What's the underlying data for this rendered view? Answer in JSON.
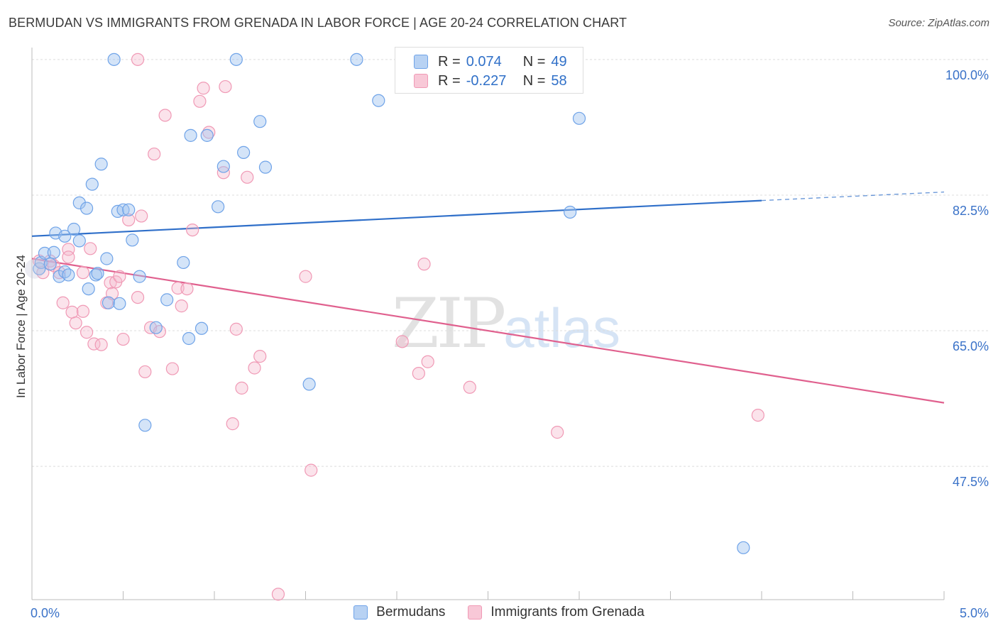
{
  "title": "BERMUDAN VS IMMIGRANTS FROM GRENADA IN LABOR FORCE | AGE 20-24 CORRELATION CHART",
  "source": "Source: ZipAtlas.com",
  "watermark": {
    "zip": "ZIP",
    "atlas": "atlas"
  },
  "legend": {
    "r_label": "R =",
    "n_label": "N =",
    "rows": [
      {
        "name": "Bermudans",
        "r": "0.074",
        "n": "49"
      },
      {
        "name": "Immigrants from Grenada",
        "r": "-0.227",
        "n": "58"
      }
    ]
  },
  "chart_data": {
    "type": "scatter",
    "title": "BERMUDAN VS IMMIGRANTS FROM GRENADA IN LABOR FORCE | AGE 20-24 CORRELATION CHART",
    "xlabel": "",
    "ylabel": "In Labor Force | Age 20-24",
    "xlim": [
      0.0,
      5.0
    ],
    "ylim": [
      30.3,
      102.0
    ],
    "x_tick_labels": [
      "0.0%",
      "5.0%"
    ],
    "y_ticks": [
      47.5,
      65.0,
      82.5,
      100.0
    ],
    "y_tick_labels": [
      "47.5%",
      "65.0%",
      "82.5%",
      "100.0%"
    ],
    "colors": {
      "bermudans": "#6fa3e8",
      "grenada": "#f099b5",
      "bermudans_line": "#2f6fc9",
      "grenada_line": "#e0608e",
      "tick_text": "#3a72c8"
    },
    "series": [
      {
        "name": "Bermudans",
        "trend": {
          "x0": 0.0,
          "y0": 77.2,
          "x1": 4.0,
          "y1": 81.8,
          "dashed_to": 5.0,
          "y_dashed_end": 82.9
        },
        "points": [
          [
            0.04,
            73.0
          ],
          [
            0.05,
            73.8
          ],
          [
            0.07,
            75.0
          ],
          [
            0.1,
            73.6
          ],
          [
            0.12,
            75.1
          ],
          [
            0.13,
            77.6
          ],
          [
            0.15,
            72.0
          ],
          [
            0.18,
            77.2
          ],
          [
            0.18,
            72.6
          ],
          [
            0.2,
            72.2
          ],
          [
            0.23,
            78.1
          ],
          [
            0.26,
            76.6
          ],
          [
            0.26,
            81.5
          ],
          [
            0.3,
            80.8
          ],
          [
            0.31,
            70.4
          ],
          [
            0.33,
            83.9
          ],
          [
            0.35,
            72.2
          ],
          [
            0.36,
            72.4
          ],
          [
            0.38,
            86.5
          ],
          [
            0.41,
            74.3
          ],
          [
            0.42,
            68.6
          ],
          [
            0.45,
            100.0
          ],
          [
            0.47,
            80.4
          ],
          [
            0.48,
            68.5
          ],
          [
            0.5,
            80.6
          ],
          [
            0.53,
            80.6
          ],
          [
            0.55,
            76.7
          ],
          [
            0.59,
            72.0
          ],
          [
            0.62,
            52.8
          ],
          [
            0.68,
            65.4
          ],
          [
            0.74,
            69.0
          ],
          [
            0.83,
            73.8
          ],
          [
            0.86,
            64.0
          ],
          [
            0.87,
            90.2
          ],
          [
            0.93,
            65.3
          ],
          [
            0.96,
            90.2
          ],
          [
            1.02,
            81.0
          ],
          [
            1.05,
            86.2
          ],
          [
            1.12,
            100.0
          ],
          [
            1.16,
            88.0
          ],
          [
            1.25,
            92.0
          ],
          [
            1.28,
            86.1
          ],
          [
            1.52,
            58.1
          ],
          [
            1.78,
            100.0
          ],
          [
            1.9,
            94.7
          ],
          [
            2.53,
            100.0
          ],
          [
            2.95,
            80.3
          ],
          [
            3.0,
            92.4
          ],
          [
            3.9,
            37.0
          ]
        ]
      },
      {
        "name": "Immigrants from Grenada",
        "trend": {
          "x0": 0.0,
          "y0": 74.3,
          "x1": 5.0,
          "y1": 55.7
        },
        "points": [
          [
            0.04,
            74.0
          ],
          [
            0.06,
            72.5
          ],
          [
            0.1,
            74.0
          ],
          [
            0.12,
            73.4
          ],
          [
            0.15,
            72.5
          ],
          [
            0.2,
            75.5
          ],
          [
            0.2,
            74.5
          ],
          [
            0.22,
            67.4
          ],
          [
            0.24,
            66.0
          ],
          [
            0.28,
            67.5
          ],
          [
            0.3,
            64.8
          ],
          [
            0.32,
            75.6
          ],
          [
            0.34,
            63.3
          ],
          [
            0.38,
            63.2
          ],
          [
            0.41,
            68.6
          ],
          [
            0.43,
            71.2
          ],
          [
            0.44,
            69.8
          ],
          [
            0.46,
            71.3
          ],
          [
            0.48,
            72.0
          ],
          [
            0.5,
            63.9
          ],
          [
            0.53,
            79.3
          ],
          [
            0.58,
            69.3
          ],
          [
            0.6,
            79.8
          ],
          [
            0.62,
            59.7
          ],
          [
            0.65,
            65.4
          ],
          [
            0.67,
            87.8
          ],
          [
            0.7,
            64.9
          ],
          [
            0.73,
            92.8
          ],
          [
            0.77,
            60.1
          ],
          [
            0.8,
            70.5
          ],
          [
            0.82,
            68.2
          ],
          [
            0.85,
            70.4
          ],
          [
            0.88,
            78.0
          ],
          [
            0.92,
            94.6
          ],
          [
            0.94,
            96.3
          ],
          [
            0.97,
            90.6
          ],
          [
            1.05,
            85.4
          ],
          [
            1.06,
            96.5
          ],
          [
            1.1,
            53.0
          ],
          [
            1.12,
            65.2
          ],
          [
            1.15,
            57.6
          ],
          [
            1.18,
            84.8
          ],
          [
            1.22,
            60.2
          ],
          [
            1.25,
            61.7
          ],
          [
            1.35,
            31.0
          ],
          [
            1.5,
            72.0
          ],
          [
            1.53,
            47.0
          ],
          [
            2.03,
            63.6
          ],
          [
            2.12,
            59.5
          ],
          [
            2.15,
            73.6
          ],
          [
            2.17,
            61.0
          ],
          [
            2.4,
            57.7
          ],
          [
            2.5,
            100.0
          ],
          [
            2.88,
            51.9
          ],
          [
            3.98,
            54.1
          ],
          [
            0.58,
            100.0
          ],
          [
            0.28,
            72.5
          ],
          [
            0.17,
            68.6
          ]
        ]
      }
    ]
  }
}
